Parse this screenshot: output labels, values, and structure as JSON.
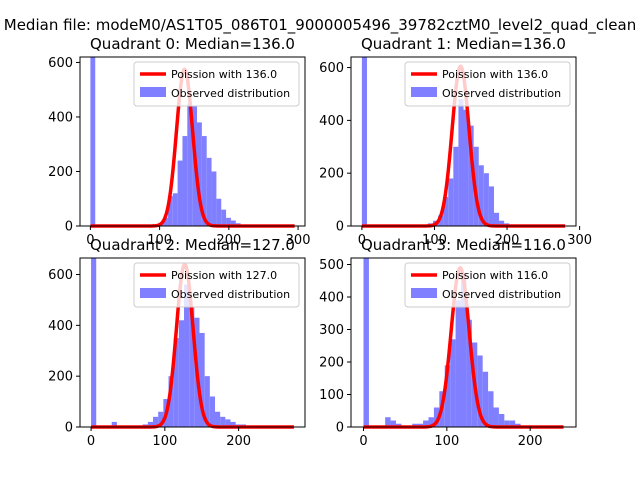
{
  "figure_title": "Median file: modeM0/AS1T05_086T01_9000005496_39782cztM0_level2_quad_clean",
  "colors": {
    "poisson_line": "#ff0000",
    "histogram": "#7f7fff",
    "axis": "#000000"
  },
  "chart_data": [
    {
      "type": "bar",
      "title": "Quadrant 0: Median=136.0",
      "legend_line": "Poission with 136.0",
      "legend_hist": "Observed distribution",
      "legend_position": "top-right",
      "xlim": [
        -15,
        310
      ],
      "ylim": [
        0,
        620
      ],
      "xticks": [
        0,
        100,
        200,
        300
      ],
      "yticks": [
        0,
        200,
        400,
        600
      ],
      "poisson_lambda": 136,
      "bin_width": 7,
      "bins": [
        [
          0,
          620
        ],
        [
          7,
          0
        ],
        [
          98,
          10
        ],
        [
          105,
          30
        ],
        [
          112,
          110
        ],
        [
          119,
          120
        ],
        [
          126,
          240
        ],
        [
          133,
          330
        ],
        [
          140,
          450
        ],
        [
          147,
          440
        ],
        [
          154,
          380
        ],
        [
          161,
          330
        ],
        [
          168,
          250
        ],
        [
          175,
          200
        ],
        [
          182,
          100
        ],
        [
          189,
          60
        ],
        [
          196,
          30
        ],
        [
          203,
          20
        ],
        [
          210,
          10
        ]
      ],
      "poisson_peak": 575
    },
    {
      "type": "bar",
      "title": "Quadrant 1: Median=136.0",
      "legend_line": "Poission with 136.0",
      "legend_hist": "Observed distribution",
      "legend_position": "top-right",
      "xlim": [
        -15,
        295
      ],
      "ylim": [
        0,
        640
      ],
      "xticks": [
        0,
        100,
        200,
        300
      ],
      "yticks": [
        0,
        200,
        400,
        600
      ],
      "poisson_lambda": 136,
      "bin_width": 7,
      "bins": [
        [
          0,
          640
        ],
        [
          7,
          0
        ],
        [
          91,
          10
        ],
        [
          98,
          20
        ],
        [
          105,
          40
        ],
        [
          112,
          110
        ],
        [
          119,
          180
        ],
        [
          126,
          300
        ],
        [
          133,
          480
        ],
        [
          140,
          440
        ],
        [
          147,
          380
        ],
        [
          154,
          300
        ],
        [
          161,
          230
        ],
        [
          168,
          200
        ],
        [
          175,
          150
        ],
        [
          182,
          50
        ],
        [
          189,
          20
        ],
        [
          196,
          10
        ]
      ],
      "poisson_peak": 605
    },
    {
      "type": "bar",
      "title": "Quadrant 2: Median=127.0",
      "legend_line": "Poission with 127.0",
      "legend_hist": "Observed distribution",
      "legend_position": "top-right",
      "xlim": [
        -15,
        290
      ],
      "ylim": [
        0,
        665
      ],
      "xticks": [
        0,
        100,
        200
      ],
      "yticks": [
        0,
        200,
        400,
        600
      ],
      "poisson_lambda": 127,
      "bin_width": 7,
      "bins": [
        [
          0,
          665
        ],
        [
          7,
          0
        ],
        [
          28,
          20
        ],
        [
          70,
          10
        ],
        [
          77,
          20
        ],
        [
          84,
          40
        ],
        [
          91,
          60
        ],
        [
          98,
          110
        ],
        [
          105,
          200
        ],
        [
          112,
          350
        ],
        [
          119,
          420
        ],
        [
          126,
          560
        ],
        [
          133,
          470
        ],
        [
          140,
          430
        ],
        [
          147,
          370
        ],
        [
          154,
          200
        ],
        [
          161,
          120
        ],
        [
          168,
          60
        ],
        [
          175,
          40
        ],
        [
          182,
          30
        ],
        [
          189,
          20
        ],
        [
          196,
          10
        ],
        [
          203,
          10
        ]
      ],
      "poisson_peak": 640
    },
    {
      "type": "bar",
      "title": "Quadrant 3: Median=116.0",
      "legend_line": "Poission with 116.0",
      "legend_hist": "Observed distribution",
      "legend_position": "top-right",
      "xlim": [
        -15,
        255
      ],
      "ylim": [
        0,
        520
      ],
      "xticks": [
        0,
        100,
        200
      ],
      "yticks": [
        0,
        100,
        200,
        300,
        400,
        500
      ],
      "poisson_lambda": 116,
      "bin_width": 6.5,
      "bins": [
        [
          0,
          520
        ],
        [
          6.5,
          0
        ],
        [
          26,
          30
        ],
        [
          32.5,
          20
        ],
        [
          39,
          10
        ],
        [
          58.5,
          10
        ],
        [
          65,
          10
        ],
        [
          71.5,
          20
        ],
        [
          78,
          30
        ],
        [
          84.5,
          60
        ],
        [
          91,
          110
        ],
        [
          97.5,
          190
        ],
        [
          104,
          270
        ],
        [
          110.5,
          390
        ],
        [
          117,
          470
        ],
        [
          123.5,
          330
        ],
        [
          130,
          260
        ],
        [
          136.5,
          220
        ],
        [
          143,
          170
        ],
        [
          149.5,
          110
        ],
        [
          156,
          60
        ],
        [
          162.5,
          40
        ],
        [
          169,
          20
        ],
        [
          175.5,
          20
        ],
        [
          182,
          10
        ]
      ],
      "poisson_peak": 490
    }
  ]
}
